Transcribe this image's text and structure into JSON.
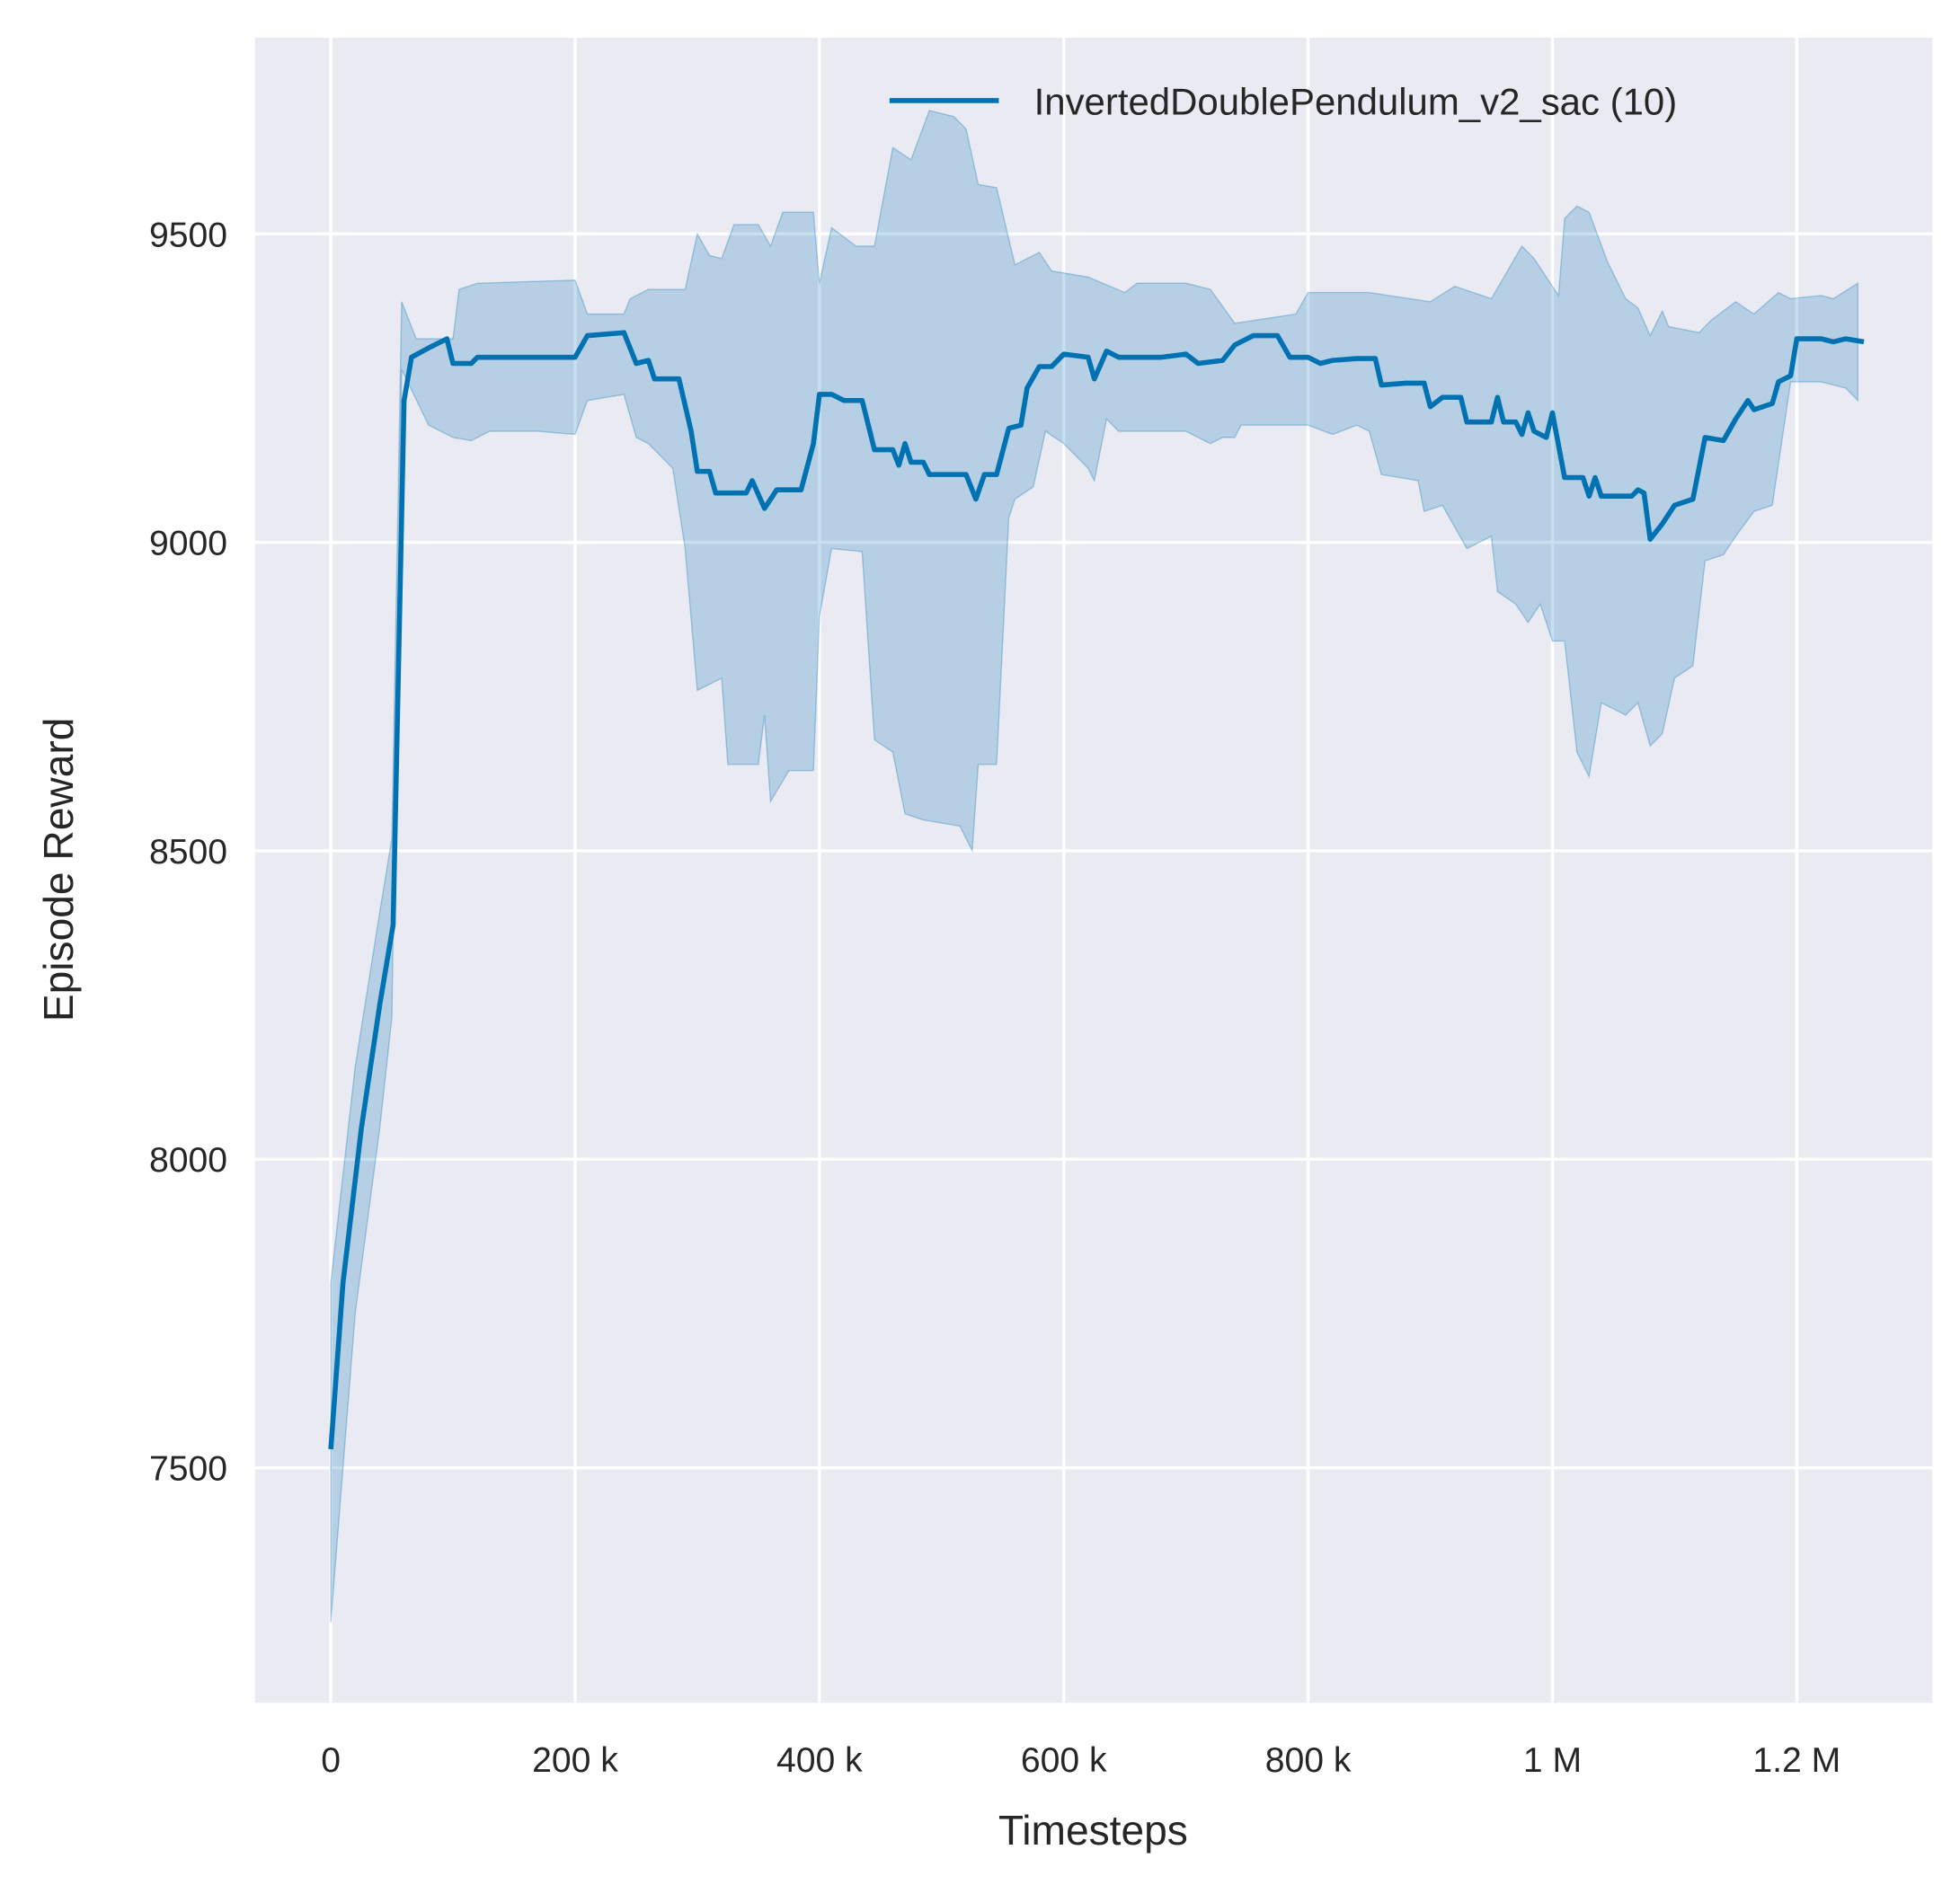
{
  "chart_data": {
    "type": "line",
    "title": "",
    "xlabel": "Timesteps",
    "ylabel": "Episode Reward",
    "xlim": [
      -62000,
      1311000
    ],
    "ylim": [
      7119,
      9818
    ],
    "grid": true,
    "legend_placement": "top-right",
    "background": "#eaeaf2",
    "xticks": [
      {
        "v": 0,
        "label": "0"
      },
      {
        "v": 200000,
        "label": "200 k"
      },
      {
        "v": 400000,
        "label": "400 k"
      },
      {
        "v": 600000,
        "label": "600 k"
      },
      {
        "v": 800000,
        "label": "800 k"
      },
      {
        "v": 1000000,
        "label": "1 M"
      },
      {
        "v": 1200000,
        "label": "1.2 M"
      }
    ],
    "yticks": [
      {
        "v": 7500,
        "label": "7500"
      },
      {
        "v": 8000,
        "label": "8000"
      },
      {
        "v": 8500,
        "label": "8500"
      },
      {
        "v": 9000,
        "label": "9000"
      },
      {
        "v": 9500,
        "label": "9500"
      }
    ],
    "series": [
      {
        "name": "InvertedDoublePendulum_v2_sac (10)",
        "color": "#0072b2",
        "band_color": "#0072b2",
        "mean": {
          "x": [
            0,
            10000,
            25000,
            40000,
            51000,
            60000,
            66000,
            80000,
            95000,
            100000,
            115000,
            120000,
            200000,
            210000,
            240000,
            250000,
            260000,
            265000,
            285000,
            295000,
            300000,
            310000,
            315000,
            340000,
            345000,
            355000,
            365000,
            385000,
            395000,
            400000,
            410000,
            420000,
            435000,
            445000,
            460000,
            465000,
            470000,
            475000,
            485000,
            490000,
            520000,
            528000,
            535000,
            545000,
            555000,
            565000,
            570000,
            580000,
            590000,
            600000,
            620000,
            625000,
            635000,
            645000,
            680000,
            700000,
            710000,
            730000,
            740000,
            755000,
            775000,
            785000,
            800000,
            810000,
            820000,
            840000,
            855000,
            860000,
            880000,
            895000,
            900000,
            910000,
            925000,
            930000,
            950000,
            955000,
            960000,
            970000,
            975000,
            980000,
            985000,
            995000,
            1000000,
            1010000,
            1025000,
            1030000,
            1035000,
            1040000,
            1065000,
            1070000,
            1075000,
            1080000,
            1090000,
            1100000,
            1115000,
            1125000,
            1140000,
            1150000,
            1160000,
            1165000,
            1180000,
            1185000,
            1195000,
            1200000,
            1220000,
            1230000,
            1240000,
            1255000
          ],
          "y": [
            7530,
            7800,
            8050,
            8250,
            8380,
            9230,
            9300,
            9315,
            9330,
            9290,
            9290,
            9300,
            9300,
            9335,
            9340,
            9290,
            9295,
            9265,
            9265,
            9180,
            9115,
            9115,
            9080,
            9080,
            9100,
            9055,
            9085,
            9085,
            9160,
            9240,
            9240,
            9230,
            9230,
            9150,
            9150,
            9125,
            9160,
            9130,
            9130,
            9110,
            9110,
            9070,
            9110,
            9110,
            9185,
            9190,
            9250,
            9285,
            9285,
            9305,
            9300,
            9265,
            9310,
            9300,
            9300,
            9305,
            9290,
            9295,
            9320,
            9335,
            9335,
            9300,
            9300,
            9290,
            9295,
            9298,
            9298,
            9255,
            9258,
            9258,
            9220,
            9235,
            9235,
            9195,
            9195,
            9235,
            9195,
            9195,
            9175,
            9210,
            9180,
            9170,
            9210,
            9105,
            9105,
            9075,
            9105,
            9075,
            9075,
            9085,
            9080,
            9005,
            9030,
            9060,
            9070,
            9170,
            9165,
            9200,
            9230,
            9215,
            9225,
            9260,
            9270,
            9330,
            9330,
            9325,
            9330,
            9325
          ]
        },
        "upper": {
          "x": [
            0,
            20000,
            40000,
            50000,
            58000,
            70000,
            100000,
            105000,
            120000,
            200000,
            210000,
            240000,
            245000,
            260000,
            290000,
            300000,
            310000,
            320000,
            330000,
            350000,
            360000,
            370000,
            395000,
            400000,
            410000,
            430000,
            445000,
            460000,
            475000,
            490000,
            510000,
            520000,
            530000,
            545000,
            560000,
            580000,
            590000,
            620000,
            650000,
            660000,
            700000,
            720000,
            740000,
            790000,
            800000,
            850000,
            900000,
            920000,
            950000,
            975000,
            985000,
            1005000,
            1010000,
            1020000,
            1030000,
            1045000,
            1060000,
            1070000,
            1080000,
            1090000,
            1095000,
            1120000,
            1130000,
            1150000,
            1165000,
            1185000,
            1195000,
            1220000,
            1230000,
            1250000
          ],
          "y": [
            7800,
            8150,
            8400,
            8520,
            9390,
            9330,
            9330,
            9410,
            9420,
            9425,
            9370,
            9370,
            9395,
            9410,
            9410,
            9500,
            9465,
            9460,
            9515,
            9515,
            9480,
            9535,
            9535,
            9420,
            9510,
            9480,
            9480,
            9640,
            9620,
            9700,
            9690,
            9670,
            9580,
            9575,
            9450,
            9470,
            9440,
            9430,
            9405,
            9420,
            9420,
            9410,
            9355,
            9370,
            9405,
            9405,
            9390,
            9415,
            9395,
            9480,
            9460,
            9400,
            9525,
            9545,
            9535,
            9455,
            9395,
            9380,
            9335,
            9375,
            9350,
            9340,
            9360,
            9390,
            9370,
            9405,
            9395,
            9400,
            9395,
            9420
          ]
        },
        "lower": {
          "x": [
            0,
            20000,
            40000,
            50000,
            58000,
            80000,
            100000,
            115000,
            130000,
            170000,
            200000,
            210000,
            240000,
            250000,
            260000,
            280000,
            290000,
            300000,
            320000,
            325000,
            350000,
            355000,
            360000,
            375000,
            395000,
            400000,
            410000,
            435000,
            445000,
            460000,
            470000,
            485000,
            515000,
            525000,
            530000,
            545000,
            555000,
            560000,
            575000,
            585000,
            600000,
            620000,
            625000,
            635000,
            645000,
            700000,
            720000,
            730000,
            740000,
            745000,
            790000,
            800000,
            820000,
            840000,
            850000,
            860000,
            890000,
            895000,
            910000,
            930000,
            950000,
            955000,
            970000,
            980000,
            990000,
            1000000,
            1010000,
            1020000,
            1030000,
            1040000,
            1060000,
            1070000,
            1080000,
            1090000,
            1100000,
            1115000,
            1125000,
            1140000,
            1150000,
            1165000,
            1180000,
            1195000,
            1220000,
            1240000,
            1250000
          ],
          "y": [
            7250,
            7750,
            8050,
            8230,
            9280,
            9190,
            9170,
            9165,
            9180,
            9180,
            9175,
            9230,
            9240,
            9170,
            9160,
            9120,
            8990,
            8760,
            8780,
            8640,
            8640,
            8720,
            8580,
            8630,
            8630,
            8880,
            8990,
            8985,
            8680,
            8660,
            8560,
            8550,
            8540,
            8500,
            8640,
            8640,
            9040,
            9070,
            9090,
            9180,
            9160,
            9120,
            9100,
            9200,
            9180,
            9180,
            9160,
            9170,
            9170,
            9190,
            9190,
            9190,
            9175,
            9190,
            9180,
            9110,
            9100,
            9050,
            9060,
            8990,
            9010,
            8920,
            8900,
            8870,
            8900,
            8840,
            8840,
            8660,
            8620,
            8740,
            8720,
            8740,
            8670,
            8690,
            8780,
            8800,
            8970,
            8980,
            9010,
            9050,
            9060,
            9260,
            9260,
            9250,
            9230
          ]
        }
      }
    ]
  }
}
